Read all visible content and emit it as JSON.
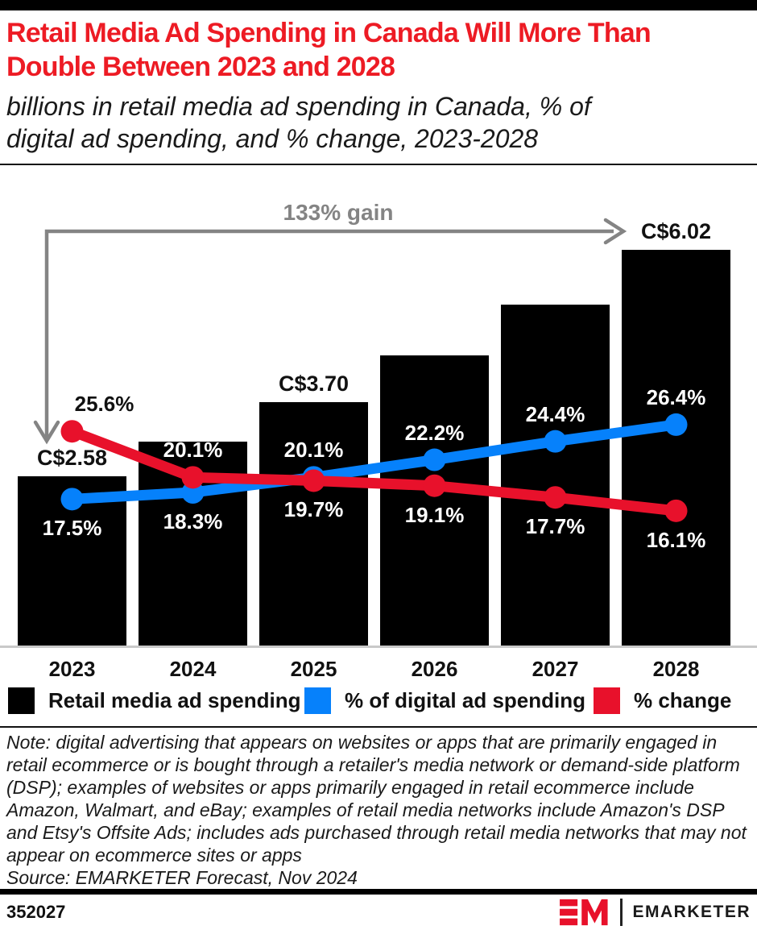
{
  "header": {
    "title_lines": [
      "Retail Media Ad Spending in Canada Will More Than",
      "Double Between 2023 and 2028"
    ],
    "title_color": "#ed1b24",
    "subtitle_lines": [
      "billions in retail media ad spending in Canada, % of",
      "digital ad spending, and % change, 2023-2028"
    ]
  },
  "chart_data": {
    "type": "combo-bar-line",
    "categories": [
      "2023",
      "2024",
      "2025",
      "2026",
      "2027",
      "2028"
    ],
    "series": [
      {
        "name": "Retail media ad spending",
        "type": "bar",
        "color": "#000000",
        "unit": "C$ billions",
        "values": [
          2.58,
          3.1,
          3.7,
          4.41,
          5.19,
          6.02
        ],
        "labels": [
          "C$2.58",
          null,
          "C$3.70",
          null,
          null,
          "C$6.02"
        ]
      },
      {
        "name": "% of digital ad spending",
        "type": "line",
        "color": "#0681fb",
        "values": [
          17.5,
          18.3,
          20.1,
          22.2,
          24.4,
          26.4
        ],
        "labels": [
          "17.5%",
          "18.3%",
          "20.1%",
          "22.2%",
          "24.4%",
          "26.4%"
        ]
      },
      {
        "name": "% change",
        "type": "line",
        "color": "#e8112b",
        "values": [
          25.6,
          20.1,
          19.7,
          19.1,
          17.7,
          16.1
        ],
        "labels": [
          "25.6%",
          "20.1%",
          "19.7%",
          "19.1%",
          "17.7%",
          "16.1%"
        ]
      }
    ],
    "annotation": {
      "label": "133% gain",
      "color": "#848484",
      "from_category": "2023",
      "to_category": "2028"
    },
    "axes": {
      "bar_ylim": [
        0,
        7
      ],
      "pct_ylim": [
        0,
        55
      ],
      "grid": false
    },
    "legend_position": "bottom"
  },
  "note": {
    "text": "Note: digital advertising that appears on websites or apps that are primarily engaged in retail ecommerce or is bought through a retailer's media network or demand-side platform (DSP); examples of websites or apps primarily engaged in retail ecommerce include Amazon, Walmart, and eBay; examples of retail media networks include Amazon's DSP and Etsy's Offsite Ads; includes ads purchased through retail media networks that may not appear on ecommerce sites or apps",
    "source": "Source: EMARKETER Forecast, Nov 2024"
  },
  "footer": {
    "chart_id": "352027",
    "brand": "EMARKETER"
  }
}
